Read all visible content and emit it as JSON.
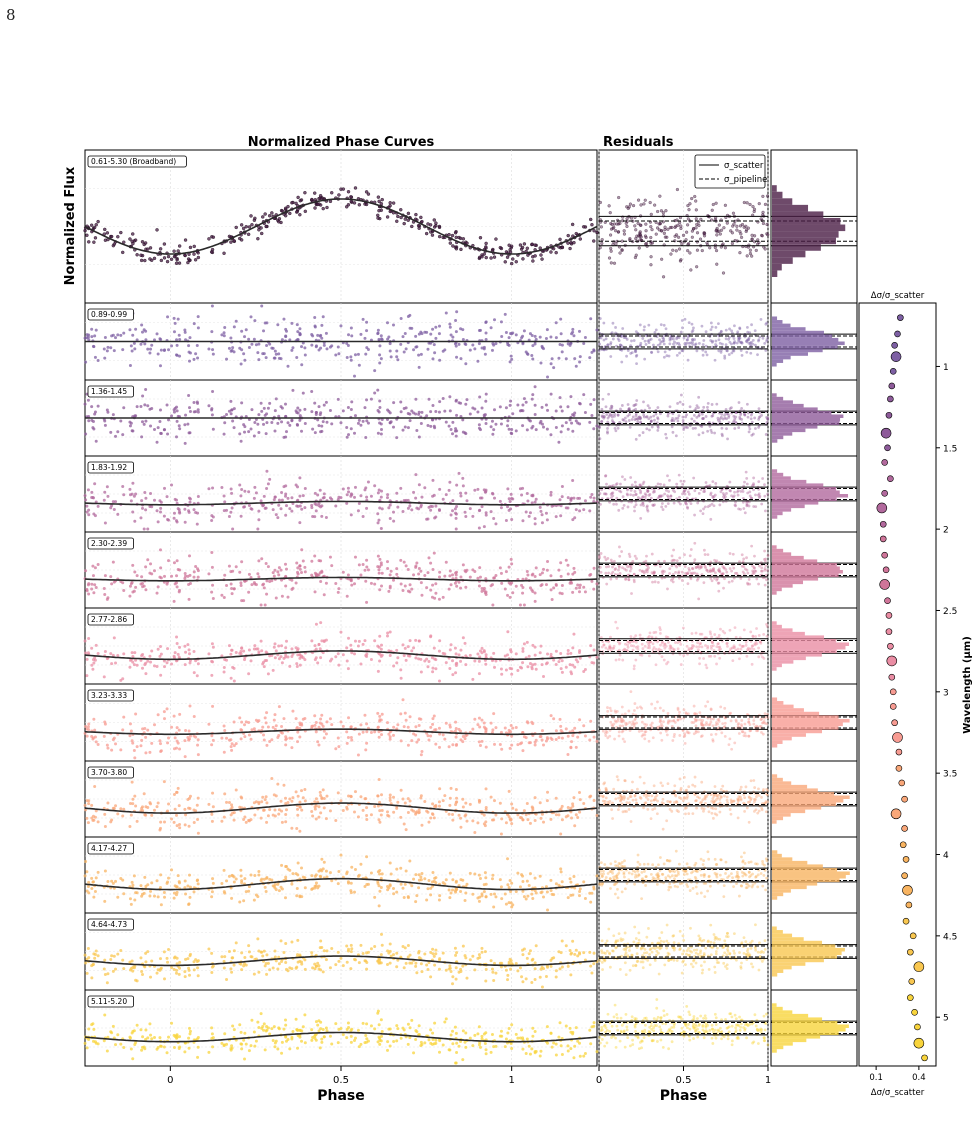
{
  "page": {
    "number": "8"
  },
  "chart_data": {
    "type": "scatter",
    "titles": {
      "left": "Normalized Phase Curves",
      "middle": "Residuals"
    },
    "ylabel_left": "Normalized Flux",
    "xlabel": "Phase",
    "legend": {
      "solid": "σ_scatter",
      "dashed": "σ_pipeline",
      "placement": "top-right of residuals panel"
    },
    "phase_axis": {
      "ticks": [
        0,
        0.5,
        1
      ],
      "tick_labels": [
        "0",
        "0.5",
        "1"
      ],
      "xlim": [
        -0.25,
        1.25
      ]
    },
    "residual_axis": {
      "ticks": [
        0,
        0.5,
        1
      ],
      "tick_labels": [
        "0",
        "0.5",
        "1"
      ],
      "xlim": [
        0,
        1
      ]
    },
    "grid": true,
    "panels": [
      {
        "label": "0.61-5.30 (Broadband)",
        "color": "#4a1d45",
        "amplitude": 1.0,
        "noise": 0.13,
        "sigma_scatter": 0.32,
        "sigma_pipeline": 0.22,
        "delta_sigma_ratio": null
      },
      {
        "label": "0.89-0.99",
        "color": "#7d5fa3",
        "amplitude": 0.0,
        "noise": 0.55,
        "sigma_scatter": 0.32,
        "sigma_pipeline": 0.24,
        "delta_sigma_ratio": null
      },
      {
        "label": "1.36-1.45",
        "color": "#8e5b9a",
        "amplitude": 0.0,
        "noise": 0.55,
        "sigma_scatter": 0.3,
        "sigma_pipeline": 0.24,
        "delta_sigma_ratio": null
      },
      {
        "label": "1.83-1.92",
        "color": "#b2699d",
        "amplitude": 0.08,
        "noise": 0.5,
        "sigma_scatter": 0.3,
        "sigma_pipeline": 0.24,
        "delta_sigma_ratio": null
      },
      {
        "label": "2.30-2.39",
        "color": "#cf7599",
        "amplitude": 0.08,
        "noise": 0.5,
        "sigma_scatter": 0.3,
        "sigma_pipeline": 0.24,
        "delta_sigma_ratio": null
      },
      {
        "label": "2.77-2.86",
        "color": "#ea8da4",
        "amplitude": 0.2,
        "noise": 0.42,
        "sigma_scatter": 0.32,
        "sigma_pipeline": 0.24,
        "delta_sigma_ratio": null
      },
      {
        "label": "3.23-3.33",
        "color": "#f79b92",
        "amplitude": 0.12,
        "noise": 0.42,
        "sigma_scatter": 0.3,
        "sigma_pipeline": 0.24,
        "delta_sigma_ratio": null
      },
      {
        "label": "3.70-3.80",
        "color": "#f9a779",
        "amplitude": 0.24,
        "noise": 0.42,
        "sigma_scatter": 0.3,
        "sigma_pipeline": 0.24,
        "delta_sigma_ratio": null
      },
      {
        "label": "4.17-4.27",
        "color": "#f8b461",
        "amplitude": 0.26,
        "noise": 0.4,
        "sigma_scatter": 0.3,
        "sigma_pipeline": 0.24,
        "delta_sigma_ratio": null
      },
      {
        "label": "4.64-4.73",
        "color": "#f9c750",
        "amplitude": 0.22,
        "noise": 0.4,
        "sigma_scatter": 0.3,
        "sigma_pipeline": 0.24,
        "delta_sigma_ratio": null
      },
      {
        "label": "5.11-5.20",
        "color": "#f8d43c",
        "amplitude": 0.22,
        "noise": 0.4,
        "sigma_scatter": 0.3,
        "sigma_pipeline": 0.24,
        "delta_sigma_ratio": null
      }
    ],
    "side_panel": {
      "type": "scatter",
      "top_label": "Δσ/σ_scatter",
      "bottom_label": "Δσ/σ_scatter",
      "ylabel": "Wavelength (μm)",
      "yticks": [
        1,
        1.5,
        2,
        2.5,
        3,
        3.5,
        4,
        4.5,
        5
      ],
      "ytick_labels": [
        "1",
        "1.5",
        "2",
        "2.5",
        "3",
        "3.5",
        "4",
        "4.5",
        "5"
      ],
      "xticks": [
        0.1,
        0.4
      ],
      "xtick_labels": [
        "0.1",
        "0.4"
      ],
      "ylim": [
        0.61,
        5.3
      ],
      "points": [
        {
          "wl": 0.7,
          "r": 0.27
        },
        {
          "wl": 0.8,
          "r": 0.25
        },
        {
          "wl": 0.87,
          "r": 0.23
        },
        {
          "wl": 0.94,
          "r": 0.24,
          "big": true
        },
        {
          "wl": 1.03,
          "r": 0.22
        },
        {
          "wl": 1.12,
          "r": 0.21
        },
        {
          "wl": 1.2,
          "r": 0.2
        },
        {
          "wl": 1.3,
          "r": 0.19
        },
        {
          "wl": 1.41,
          "r": 0.17,
          "big": true
        },
        {
          "wl": 1.5,
          "r": 0.18
        },
        {
          "wl": 1.59,
          "r": 0.16
        },
        {
          "wl": 1.69,
          "r": 0.2
        },
        {
          "wl": 1.78,
          "r": 0.16
        },
        {
          "wl": 1.87,
          "r": 0.14,
          "big": true
        },
        {
          "wl": 1.97,
          "r": 0.15
        },
        {
          "wl": 2.06,
          "r": 0.15
        },
        {
          "wl": 2.16,
          "r": 0.16
        },
        {
          "wl": 2.25,
          "r": 0.17
        },
        {
          "wl": 2.34,
          "r": 0.16,
          "big": true
        },
        {
          "wl": 2.44,
          "r": 0.18
        },
        {
          "wl": 2.53,
          "r": 0.19
        },
        {
          "wl": 2.63,
          "r": 0.19
        },
        {
          "wl": 2.72,
          "r": 0.2
        },
        {
          "wl": 2.81,
          "r": 0.21,
          "big": true
        },
        {
          "wl": 2.91,
          "r": 0.21
        },
        {
          "wl": 3.0,
          "r": 0.22
        },
        {
          "wl": 3.09,
          "r": 0.22
        },
        {
          "wl": 3.19,
          "r": 0.23
        },
        {
          "wl": 3.28,
          "r": 0.25,
          "big": true
        },
        {
          "wl": 3.37,
          "r": 0.26
        },
        {
          "wl": 3.47,
          "r": 0.26
        },
        {
          "wl": 3.56,
          "r": 0.28
        },
        {
          "wl": 3.66,
          "r": 0.3
        },
        {
          "wl": 3.75,
          "r": 0.24,
          "big": true
        },
        {
          "wl": 3.84,
          "r": 0.3
        },
        {
          "wl": 3.94,
          "r": 0.29
        },
        {
          "wl": 4.03,
          "r": 0.31
        },
        {
          "wl": 4.13,
          "r": 0.3
        },
        {
          "wl": 4.22,
          "r": 0.32,
          "big": true
        },
        {
          "wl": 4.31,
          "r": 0.33
        },
        {
          "wl": 4.41,
          "r": 0.31
        },
        {
          "wl": 4.5,
          "r": 0.36
        },
        {
          "wl": 4.6,
          "r": 0.34
        },
        {
          "wl": 4.69,
          "r": 0.4,
          "big": true
        },
        {
          "wl": 4.78,
          "r": 0.35
        },
        {
          "wl": 4.88,
          "r": 0.34
        },
        {
          "wl": 4.97,
          "r": 0.37
        },
        {
          "wl": 5.06,
          "r": 0.39
        },
        {
          "wl": 5.16,
          "r": 0.4,
          "big": true
        },
        {
          "wl": 5.25,
          "r": 0.44
        }
      ]
    }
  }
}
